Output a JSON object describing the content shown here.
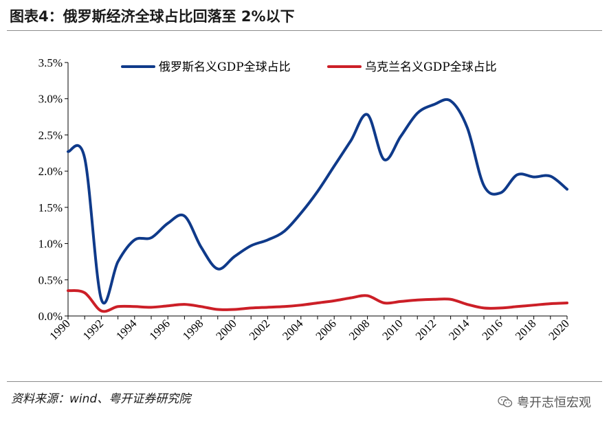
{
  "header": {
    "title": "图表4：俄罗斯经济全球占比回落至 2%以下"
  },
  "footer": {
    "source": "资料来源：wind、粤开证券研究院",
    "watermark": "粤开志恒宏观"
  },
  "colors": {
    "russia": "#0f3a8a",
    "ukraine": "#cc1f27",
    "axis": "#000000"
  },
  "icons": {
    "watermark": "wechat-icon"
  },
  "chart_data": {
    "type": "line",
    "title": "",
    "xlabel": "",
    "ylabel": "",
    "ylim": [
      0,
      3.5
    ],
    "yticks": [
      "0.0%",
      "0.5%",
      "1.0%",
      "1.5%",
      "2.0%",
      "2.5%",
      "3.0%",
      "3.5%"
    ],
    "xlim": [
      1990,
      2020
    ],
    "xticks": [
      "1990",
      "1992",
      "1994",
      "1996",
      "1998",
      "2000",
      "2002",
      "2004",
      "2006",
      "2008",
      "2010",
      "2012",
      "2014",
      "2016",
      "2018",
      "2020"
    ],
    "grid": false,
    "legend": "top",
    "x": [
      1990,
      1991,
      1992,
      1993,
      1994,
      1995,
      1996,
      1997,
      1998,
      1999,
      2000,
      2001,
      2002,
      2003,
      2004,
      2005,
      2006,
      2007,
      2008,
      2009,
      2010,
      2011,
      2012,
      2013,
      2014,
      2015,
      2016,
      2017,
      2018,
      2019,
      2020
    ],
    "series": [
      {
        "name": "俄罗斯名义GDP全球占比",
        "values": [
          2.27,
          2.18,
          0.23,
          0.75,
          1.05,
          1.08,
          1.28,
          1.38,
          0.95,
          0.65,
          0.82,
          0.97,
          1.05,
          1.17,
          1.42,
          1.72,
          2.07,
          2.42,
          2.78,
          2.16,
          2.48,
          2.8,
          2.92,
          2.97,
          2.6,
          1.8,
          1.7,
          1.95,
          1.92,
          1.93,
          1.75
        ]
      },
      {
        "name": "乌克兰名义GDP全球占比",
        "values": [
          0.35,
          0.32,
          0.07,
          0.13,
          0.13,
          0.12,
          0.14,
          0.16,
          0.13,
          0.09,
          0.09,
          0.11,
          0.12,
          0.13,
          0.15,
          0.18,
          0.21,
          0.25,
          0.28,
          0.18,
          0.2,
          0.22,
          0.23,
          0.23,
          0.16,
          0.11,
          0.11,
          0.13,
          0.15,
          0.17,
          0.18
        ]
      }
    ]
  }
}
